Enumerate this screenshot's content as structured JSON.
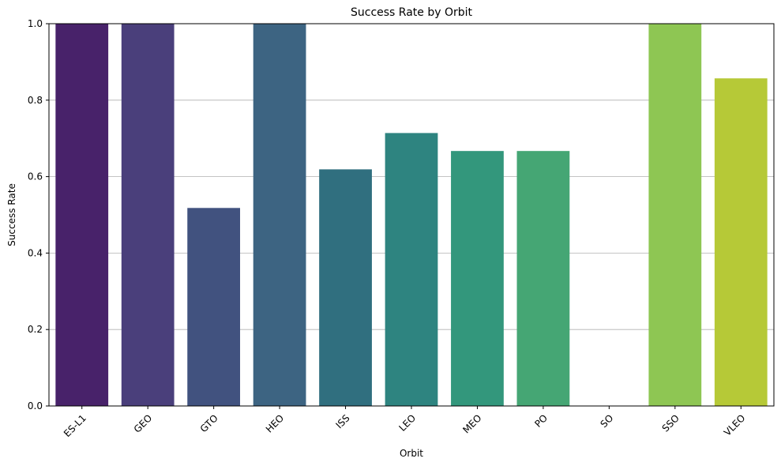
{
  "chart_data": {
    "type": "bar",
    "title": "Success Rate by Orbit",
    "xlabel": "Orbit",
    "ylabel": "Success Rate",
    "categories": [
      "ES-L1",
      "GEO",
      "GTO",
      "HEO",
      "ISS",
      "LEO",
      "MEO",
      "PO",
      "SO",
      "SSO",
      "VLEO"
    ],
    "values": [
      1.0,
      1.0,
      0.518,
      1.0,
      0.619,
      0.714,
      0.667,
      0.667,
      0.0,
      1.0,
      0.857
    ],
    "colors": [
      "#48226a",
      "#4a3f7b",
      "#41527f",
      "#3d6482",
      "#306f7f",
      "#2e8480",
      "#33977c",
      "#45a674",
      "#6fc35a",
      "#8ec653",
      "#b6c937"
    ],
    "ylim": [
      0,
      1
    ],
    "yticks": [
      "0.0",
      "0.2",
      "0.4",
      "0.6",
      "0.8",
      "1.0"
    ],
    "ytick_values": [
      0,
      0.2,
      0.4,
      0.6,
      0.8,
      1.0
    ],
    "grid": "y",
    "legend": "none"
  }
}
